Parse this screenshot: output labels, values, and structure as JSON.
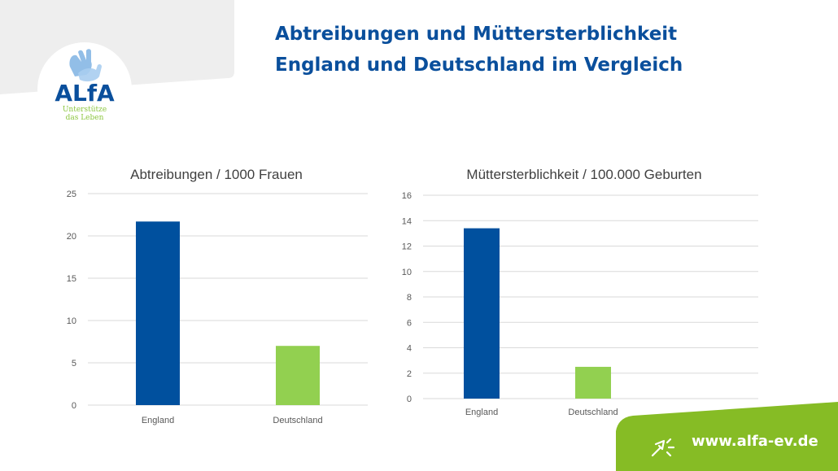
{
  "logo": {
    "name": "ALfA",
    "tagline_line1": "Unterstütze",
    "tagline_line2": "das Leben",
    "icon": "hands-icon"
  },
  "header": {
    "title_line1": "Abtreibungen und Müttersterblichkeit",
    "title_line2": "England und Deutschland im Vergleich"
  },
  "footer": {
    "url": "www.alfa-ev.de",
    "icon": "cursor-click-icon"
  },
  "colors": {
    "brand_blue": "#0a4f9c",
    "brand_green": "#8cc63f",
    "bar_blue": "#00509e",
    "bar_green": "#92d050",
    "header_gray": "#eeeeee"
  },
  "chart_data": [
    {
      "type": "bar",
      "title": "Abtreibungen / 1000 Frauen",
      "categories": [
        "England",
        "Deutschland"
      ],
      "values": [
        21.7,
        7.0
      ],
      "bar_colors": [
        "#00509e",
        "#92d050"
      ],
      "ylim": [
        0,
        25
      ],
      "yticks": [
        0,
        5,
        10,
        15,
        20,
        25
      ],
      "grid": true
    },
    {
      "type": "bar",
      "title": "Müttersterblichkeit / 100.000 Geburten",
      "categories": [
        "England",
        "Deutschland"
      ],
      "values": [
        13.4,
        2.5
      ],
      "bar_colors": [
        "#00509e",
        "#92d050"
      ],
      "ylim": [
        0,
        16
      ],
      "yticks": [
        0,
        2,
        4,
        6,
        8,
        10,
        12,
        14,
        16
      ],
      "grid": true
    }
  ]
}
